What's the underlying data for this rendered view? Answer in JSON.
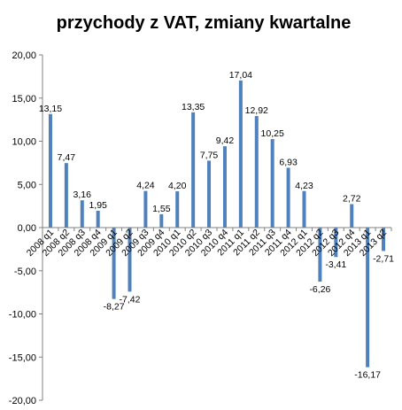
{
  "chart_data": {
    "type": "bar",
    "title": "przychody z VAT, zmiany kwartalne",
    "xlabel": "",
    "ylabel": "",
    "ylim": [
      -20,
      20
    ],
    "ytick_step": 5,
    "ytick_labels": [
      "20,00",
      "15,00",
      "10,00",
      "5,00",
      "0,00",
      "-5,00",
      "-10,00",
      "-15,00",
      "-20,00"
    ],
    "grid": false,
    "legend": "none",
    "bar_color": "#4f81bd",
    "categories": [
      "2008 q1",
      "2008 q2",
      "2008 q3",
      "2008 q4",
      "2009 q1",
      "2009 q2",
      "2009 q3",
      "2009 q4",
      "2010 q1",
      "2010 q2",
      "2010 q3",
      "2010 q4",
      "2011 q1",
      "2011 q2",
      "2011 q3",
      "2011 q4",
      "2012 q1",
      "2012 q2",
      "2012 q3",
      "2012 q4",
      "2013 q1",
      "2013 q2"
    ],
    "values": [
      13.15,
      7.47,
      3.16,
      1.95,
      -8.27,
      -7.42,
      4.24,
      1.55,
      4.2,
      13.35,
      7.75,
      9.42,
      17.04,
      12.92,
      10.25,
      6.93,
      4.23,
      -6.26,
      -3.41,
      2.72,
      -16.17,
      -2.71
    ],
    "data_labels": [
      "13,15",
      "7,47",
      "3,16",
      "1,95",
      "-8,27",
      "-7,42",
      "4,24",
      "1,55",
      "4,20",
      "13,35",
      "7,75",
      "9,42",
      "17,04",
      "12,92",
      "10,25",
      "6,93",
      "4,23",
      "-6,26",
      "-3,41",
      "2,72",
      "-16,17",
      "-2,71"
    ]
  }
}
